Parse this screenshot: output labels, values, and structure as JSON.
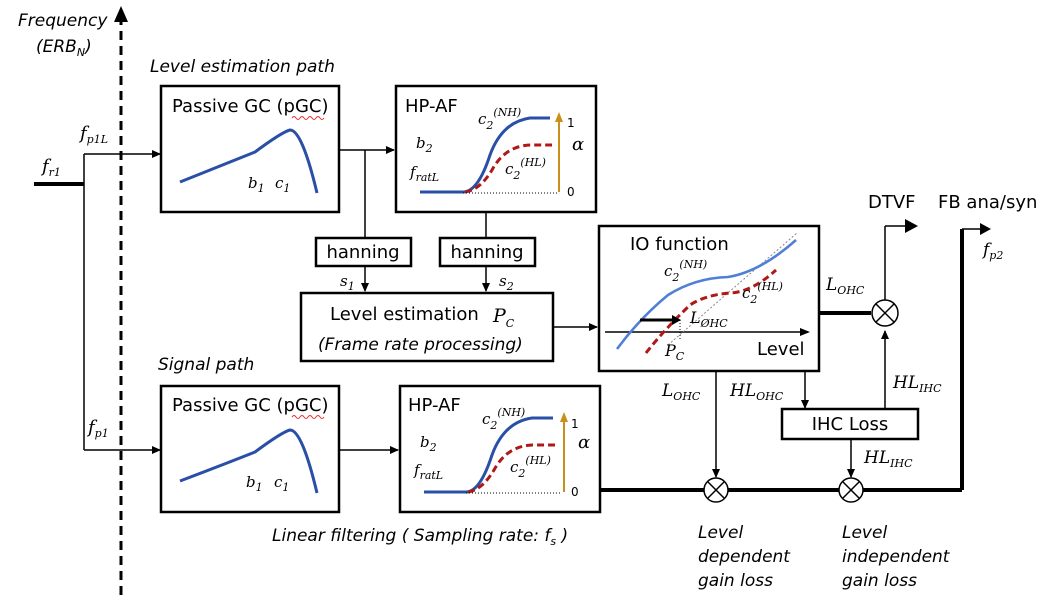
{
  "axis": {
    "frequency_label": "Frequency",
    "erb_label": "(ERB",
    "erb_sub": "N",
    "erb_close": ")"
  },
  "paths": {
    "level_estimation": "Level estimation path",
    "signal": "Signal path"
  },
  "signals": {
    "fr1": {
      "base": "f",
      "sub": "r1"
    },
    "fp1L": {
      "base": "f",
      "sub": "p1L"
    },
    "fp1": {
      "base": "f",
      "sub": "p1"
    },
    "fp2": {
      "base": "f",
      "sub": "p2"
    },
    "s1": {
      "base": "s",
      "sub": "1"
    },
    "s2": {
      "base": "s",
      "sub": "2"
    }
  },
  "blocks": {
    "pgc_top": {
      "title": "Passive GC (pGC)",
      "b": "b",
      "b_sub": "1",
      "c": "c",
      "c_sub": "1"
    },
    "pgc_bottom": {
      "title": "Passive GC (pGC)",
      "b": "b",
      "b_sub": "1",
      "c": "c",
      "c_sub": "1"
    },
    "hpaf_top": {
      "title": "HP-AF",
      "b2": "b",
      "b2_sub": "2",
      "fratL": "f",
      "fratL_sub": "ratL",
      "c2nh": "c",
      "c2nh_sub": "2",
      "c2nh_sup": "(NH)",
      "c2hl": "c",
      "c2hl_sub": "2",
      "c2hl_sup": "(HL)",
      "one": "1",
      "zero": "0",
      "alpha": "α"
    },
    "hpaf_bottom": {
      "title": "HP-AF",
      "b2": "b",
      "b2_sub": "2",
      "fratL": "f",
      "fratL_sub": "ratL",
      "c2nh": "c",
      "c2nh_sub": "2",
      "c2nh_sup": "(NH)",
      "c2hl": "c",
      "c2hl_sub": "2",
      "c2hl_sup": "(HL)",
      "one": "1",
      "zero": "0",
      "alpha": "α"
    },
    "hanning1": {
      "title": "hanning"
    },
    "hanning2": {
      "title": "hanning"
    },
    "level_est": {
      "title": "Level estimation",
      "pc": "P",
      "pc_sub": "C",
      "subtitle": "(Frame rate processing)"
    },
    "io": {
      "title": "IO function",
      "c2nh": "c",
      "c2nh_sub": "2",
      "c2nh_sup": "(NH)",
      "c2hl": "c",
      "c2hl_sub": "2",
      "c2hl_sup": "(HL)",
      "lohc": "L",
      "lohc_sub": "ØHC",
      "pc": "P",
      "pc_sub": "C",
      "level": "Level"
    },
    "ihc": {
      "title": "IHC Loss"
    }
  },
  "labels": {
    "dtvf": "DTVF",
    "fb": "FB ana/syn",
    "lohc_right": {
      "base": "L",
      "sub": "OHC"
    },
    "lohc_below": {
      "base": "L",
      "sub": "OHC"
    },
    "hlohc": {
      "base": "HL",
      "sub": "OHC"
    },
    "hlihc_up": {
      "base": "HL",
      "sub": "IHC"
    },
    "hlihc_down": {
      "base": "HL",
      "sub": "IHC"
    },
    "linear_filtering": "Linear filtering ( Sampling rate: f",
    "linear_filtering_sub": "s",
    "linear_filtering_close": " )",
    "level_dependent": [
      "Level",
      "dependent",
      "gain loss"
    ],
    "level_independent": [
      "Level",
      "independent",
      "gain loss"
    ]
  }
}
